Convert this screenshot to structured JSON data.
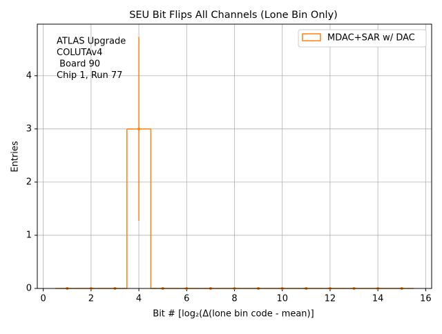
{
  "chart_data": {
    "type": "histogram",
    "title": "SEU Bit Flips All Channels (Lone Bin Only)",
    "x_label": "Bit # [log₂(Δ(lone bin code - mean)]",
    "y_label": "Entries",
    "annotation": [
      "ATLAS Upgrade",
      "COLUTAv4",
      " Board 90",
      "Chip 1, Run 77"
    ],
    "bins": [
      0.5,
      1.5,
      2.5,
      3.5,
      4.5,
      5.5,
      6.5,
      7.5,
      8.5,
      9.5,
      10.5,
      11.5,
      12.5,
      13.5,
      14.5,
      15.5
    ],
    "series": [
      {
        "name": "MDAC+SAR w/ DAC",
        "color": "#ff7f0e",
        "values": [
          0,
          0,
          0,
          3,
          0,
          0,
          0,
          0,
          0,
          0,
          0,
          0,
          0,
          0,
          0
        ],
        "errors": [
          0,
          0,
          0,
          1.73,
          0,
          0,
          0,
          0,
          0,
          0,
          0,
          0,
          0,
          0,
          0
        ]
      }
    ],
    "xlim": [
      -0.25,
      16.25
    ],
    "xticks": [
      0,
      2,
      4,
      6,
      8,
      10,
      12,
      14,
      16
    ],
    "ylim": [
      0,
      4.97
    ],
    "yticks": [
      0,
      1,
      2,
      3,
      4
    ],
    "grid": true,
    "legend": "upper right"
  }
}
